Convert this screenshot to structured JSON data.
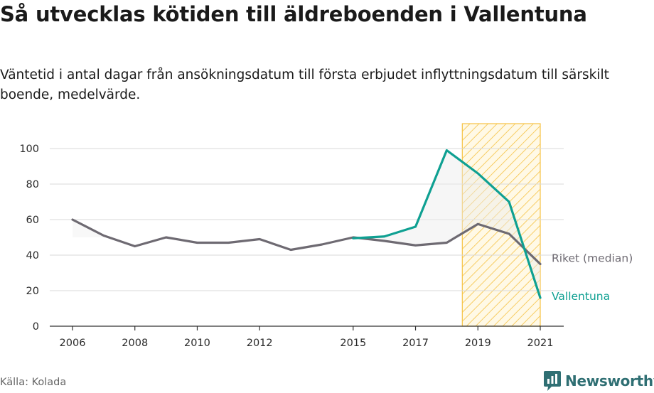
{
  "header": {
    "title": "Så utvecklas kötiden till äldreboenden i Vallentuna",
    "subtitle": "Väntetid i antal dagar från ansökningsdatum till första erbjudet inflyttningsdatum till särskilt boende, medelvärde."
  },
  "footer": {
    "source": "Källa: Kolada",
    "brand": "Newsworthy"
  },
  "colors": {
    "riket": "#6e6a72",
    "vallentuna": "#0fa092",
    "highlight": "#f6c243",
    "grid": "#d9d9d9",
    "axis": "#333333"
  },
  "chart_data": {
    "type": "line",
    "x_ticks": [
      2006,
      2008,
      2010,
      2012,
      2015,
      2017,
      2019,
      2021
    ],
    "y_ticks": [
      0,
      20,
      40,
      60,
      80,
      100
    ],
    "xlim": [
      2006,
      2021
    ],
    "ylim": [
      0,
      114
    ],
    "grid": true,
    "legend": "inline labels at line ends",
    "highlight_band": {
      "from": 2018.5,
      "to": 2021,
      "style": "hatched"
    },
    "series": [
      {
        "key": "riket",
        "name": "Riket (median)",
        "x": [
          2006,
          2007,
          2008,
          2009,
          2010,
          2011,
          2012,
          2013,
          2014,
          2015,
          2016,
          2017,
          2018,
          2019,
          2020,
          2021
        ],
        "values": [
          60,
          51,
          45,
          50,
          47,
          47,
          49,
          43,
          46,
          50,
          48,
          45.5,
          47,
          57.5,
          52,
          35
        ]
      },
      {
        "key": "vallentuna",
        "name": "Vallentuna",
        "x": [
          2015,
          2016,
          2017,
          2018,
          2019,
          2020,
          2021
        ],
        "values": [
          49.5,
          50.5,
          56,
          99,
          86,
          70,
          16
        ]
      }
    ]
  }
}
